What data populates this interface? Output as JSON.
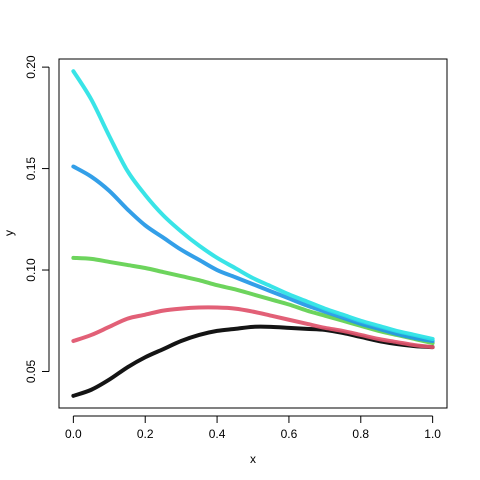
{
  "chart_data": {
    "type": "line",
    "title": "",
    "xlabel": "x",
    "ylabel": "y",
    "xlim": [
      -0.04,
      1.04
    ],
    "ylim": [
      0.032,
      0.204
    ],
    "x_ticks": [
      0.0,
      0.2,
      0.4,
      0.6,
      0.8,
      1.0
    ],
    "x_tick_labels": [
      "0.0",
      "0.2",
      "0.4",
      "0.6",
      "0.8",
      "1.0"
    ],
    "y_ticks": [
      0.05,
      0.1,
      0.15,
      0.2
    ],
    "y_tick_labels": [
      "0.05",
      "0.10",
      "0.15",
      "0.20"
    ],
    "grid": false,
    "legend": "none",
    "series": [
      {
        "color": "#000000",
        "x": [
          0.0,
          0.05,
          0.1,
          0.15,
          0.2,
          0.25,
          0.3,
          0.35,
          0.4,
          0.45,
          0.5,
          0.55,
          0.6,
          0.65,
          0.7,
          0.75,
          0.8,
          0.85,
          0.9,
          0.95,
          1.0
        ],
        "y": [
          0.038,
          0.041,
          0.046,
          0.052,
          0.057,
          0.061,
          0.065,
          0.068,
          0.07,
          0.071,
          0.072,
          0.072,
          0.0715,
          0.071,
          0.0705,
          0.069,
          0.067,
          0.065,
          0.0635,
          0.0625,
          0.062
        ]
      },
      {
        "color": "#DF536B",
        "x": [
          0.0,
          0.05,
          0.1,
          0.15,
          0.2,
          0.25,
          0.3,
          0.35,
          0.4,
          0.45,
          0.5,
          0.55,
          0.6,
          0.65,
          0.7,
          0.75,
          0.8,
          0.85,
          0.9,
          0.95,
          1.0
        ],
        "y": [
          0.065,
          0.068,
          0.072,
          0.076,
          0.078,
          0.08,
          0.081,
          0.0815,
          0.0815,
          0.081,
          0.0795,
          0.0775,
          0.0755,
          0.0735,
          0.0715,
          0.07,
          0.068,
          0.066,
          0.0645,
          0.063,
          0.062
        ]
      },
      {
        "color": "#61D04F",
        "x": [
          0.0,
          0.05,
          0.1,
          0.15,
          0.2,
          0.25,
          0.3,
          0.35,
          0.4,
          0.45,
          0.5,
          0.55,
          0.6,
          0.65,
          0.7,
          0.75,
          0.8,
          0.85,
          0.9,
          0.95,
          1.0
        ],
        "y": [
          0.106,
          0.1055,
          0.104,
          0.1025,
          0.101,
          0.099,
          0.097,
          0.095,
          0.0925,
          0.0905,
          0.088,
          0.0855,
          0.083,
          0.08,
          0.0775,
          0.075,
          0.0725,
          0.07,
          0.068,
          0.066,
          0.064
        ]
      },
      {
        "color": "#2297E6",
        "x": [
          0.0,
          0.05,
          0.1,
          0.15,
          0.2,
          0.25,
          0.3,
          0.35,
          0.4,
          0.45,
          0.5,
          0.55,
          0.6,
          0.65,
          0.7,
          0.75,
          0.8,
          0.85,
          0.9,
          0.95,
          1.0
        ],
        "y": [
          0.151,
          0.146,
          0.139,
          0.13,
          0.122,
          0.116,
          0.11,
          0.105,
          0.1,
          0.0965,
          0.093,
          0.0895,
          0.086,
          0.0825,
          0.0795,
          0.0765,
          0.0735,
          0.071,
          0.0685,
          0.0665,
          0.065
        ]
      },
      {
        "color": "#28E2E5",
        "x": [
          0.0,
          0.05,
          0.1,
          0.15,
          0.2,
          0.25,
          0.3,
          0.35,
          0.4,
          0.45,
          0.5,
          0.55,
          0.6,
          0.65,
          0.7,
          0.75,
          0.8,
          0.85,
          0.9,
          0.95,
          1.0
        ],
        "y": [
          0.198,
          0.184,
          0.166,
          0.149,
          0.137,
          0.127,
          0.119,
          0.112,
          0.106,
          0.101,
          0.096,
          0.092,
          0.088,
          0.0845,
          0.081,
          0.078,
          0.075,
          0.0725,
          0.07,
          0.068,
          0.066
        ]
      }
    ]
  }
}
